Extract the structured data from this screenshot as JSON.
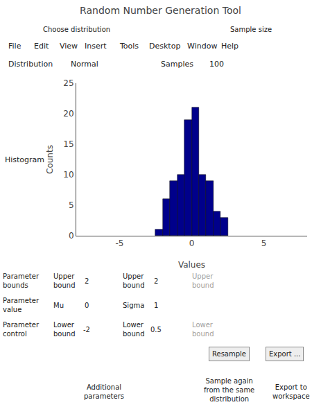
{
  "chart_data": {
    "type": "histogram",
    "title": "Random Number Generation Tool",
    "bins": [
      -2.5,
      -2.0,
      -1.5,
      -1.0,
      -0.5,
      0.0,
      0.5,
      1.0,
      1.5,
      2.0,
      2.5
    ],
    "values": [
      1,
      6,
      9,
      10,
      19,
      21,
      10,
      9,
      4,
      3
    ],
    "color": "#00008B",
    "xlabel": "Values",
    "ylabel": "Counts",
    "xlim": [
      -8,
      8
    ],
    "ylim": [
      0,
      25
    ],
    "xticks": [
      -5,
      0,
      5
    ],
    "yticks": [
      0,
      5,
      10,
      15,
      20,
      25
    ],
    "grid": false,
    "annotations": [
      "Choose distribution",
      "Sample size",
      "File",
      "Edit",
      "View",
      "Insert",
      "Tools",
      "Desktop",
      "Window",
      "Help",
      "Distribution",
      "Normal",
      "Samples",
      "100",
      "Histogram",
      "Parameter\nbounds",
      "Parameter\nvalue",
      "Parameter\ncontrol",
      "Upper\nbound",
      "2",
      "Mu",
      "0",
      "Lower\nbound",
      "-2",
      "Upper\nbound",
      "2",
      "Sigma",
      "1",
      "Lower\nbound",
      "0.5",
      "Upper\nbound",
      "Lower\nbound",
      "Resample",
      "Export ...",
      "Additional\nparameters",
      "Sample again\nfrom the same\ndistribution",
      "Export to\nworkspace"
    ]
  }
}
